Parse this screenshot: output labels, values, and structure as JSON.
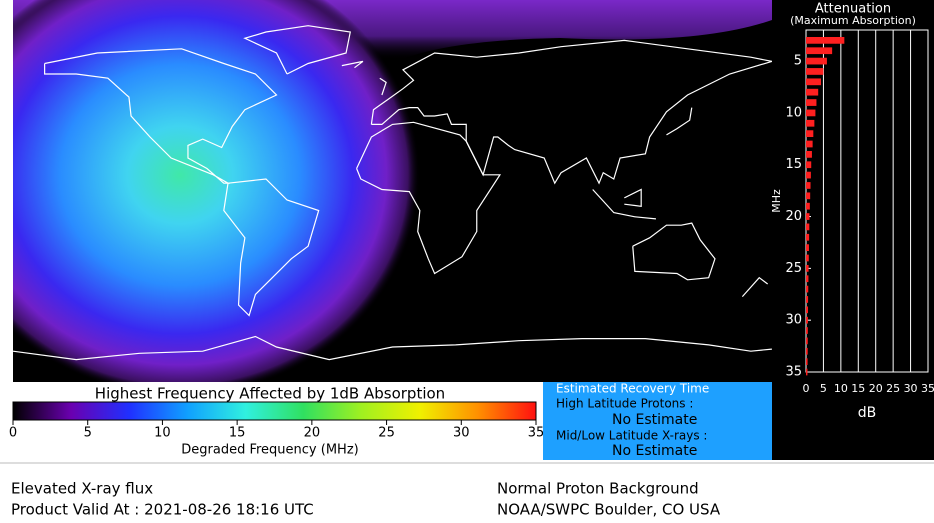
{
  "map": {
    "recovery_box": {
      "title": "Estimated Recovery Time",
      "high_label": "High Latitude Protons :",
      "high_value": "No Estimate",
      "low_label": "Mid/Low Latitude X-rays :",
      "low_value": "No Estimate"
    },
    "footer": {
      "left_line1": "Elevated X-ray flux",
      "left_line2": "Product Valid At : 2021-08-26 18:16 UTC",
      "right_line1": "Normal Proton Background",
      "right_line2": "NOAA/SWPC Boulder, CO USA"
    }
  },
  "chart_data": [
    {
      "type": "bar",
      "orientation": "horizontal",
      "title": "Attenuation",
      "subtitle": "(Maximum Absorption)",
      "ylabel": "MHz",
      "xlabel": "dB",
      "y": [
        3,
        4,
        5,
        6,
        7,
        8,
        9,
        10,
        11,
        12,
        13,
        14,
        15,
        16,
        17,
        18,
        19,
        20,
        21,
        22,
        23,
        24,
        25,
        26,
        27,
        28,
        29,
        30,
        31,
        32,
        33,
        34,
        35
      ],
      "values": [
        11,
        7.5,
        6,
        5,
        4.3,
        3.5,
        3,
        2.7,
        2.4,
        2.1,
        1.9,
        1.7,
        1.5,
        1.4,
        1.3,
        1.2,
        1.1,
        1.0,
        0.95,
        0.9,
        0.85,
        0.8,
        0.75,
        0.7,
        0.65,
        0.6,
        0.58,
        0.55,
        0.52,
        0.5,
        0.48,
        0.45,
        0.42
      ],
      "color": "#ff2020",
      "xlim": [
        0,
        35
      ],
      "xticks": [
        0,
        5,
        10,
        15,
        20,
        25,
        30,
        35
      ],
      "ylim": [
        2,
        35
      ],
      "y_inverted": true,
      "yticks": [
        5,
        10,
        15,
        20,
        25,
        30,
        35
      ],
      "grid": true
    },
    {
      "type": "colorbar",
      "title": "Highest Frequency Affected by 1dB Absorption",
      "xlabel": "Degraded Frequency (MHz)",
      "xlim": [
        0,
        35
      ],
      "xticks": [
        0,
        5,
        10,
        15,
        20,
        25,
        30,
        35
      ],
      "colors": [
        "#000000",
        "#6a00b0",
        "#2030ff",
        "#10a0ff",
        "#30f0e0",
        "#30e060",
        "#a0f020",
        "#f0f000",
        "#ff9000",
        "#ff1010"
      ]
    }
  ]
}
